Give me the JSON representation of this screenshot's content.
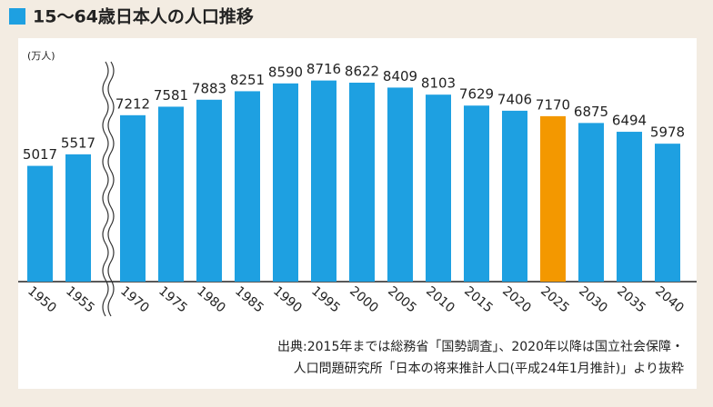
{
  "chart_data": {
    "type": "bar",
    "title": "15〜64歳日本人の人口推移",
    "unit": "(万人)",
    "categories": [
      "1950",
      "1955",
      "1970",
      "1975",
      "1980",
      "1985",
      "1990",
      "1995",
      "2000",
      "2005",
      "2010",
      "2015",
      "2020",
      "2025",
      "2030",
      "2035",
      "2040"
    ],
    "values": [
      5017,
      5517,
      7212,
      7581,
      7883,
      8251,
      8590,
      8716,
      8622,
      8409,
      8103,
      7629,
      7406,
      7170,
      6875,
      6494,
      5978
    ],
    "colors": [
      "#1ea0e1",
      "#1ea0e1",
      "#1ea0e1",
      "#1ea0e1",
      "#1ea0e1",
      "#1ea0e1",
      "#1ea0e1",
      "#1ea0e1",
      "#1ea0e1",
      "#1ea0e1",
      "#1ea0e1",
      "#1ea0e1",
      "#1ea0e1",
      "#f39800",
      "#1ea0e1",
      "#1ea0e1",
      "#1ea0e1"
    ],
    "ylim": [
      0,
      10000
    ],
    "source": [
      "出典:2015年までは総務省「国勢調査」、2020年以降は国立社会保障・",
      "人口問題研究所「日本の将来推計人口(平成24年1月推計)」より抜粋"
    ]
  }
}
